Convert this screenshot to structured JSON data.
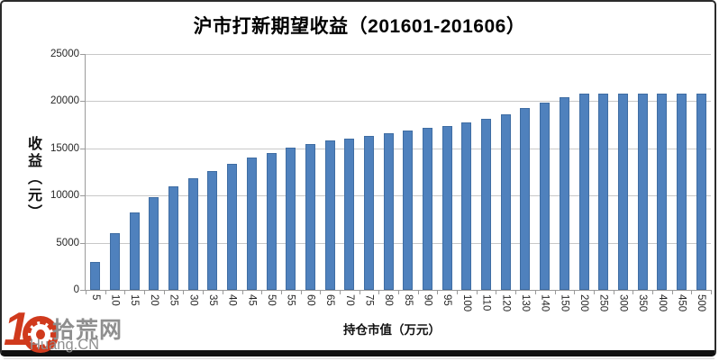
{
  "title": "沪市打新期望收益（201601-201606）",
  "y_axis": {
    "title": "收益（元）",
    "ticks": [
      "25000",
      "20000",
      "15000",
      "10000",
      "5000",
      "0"
    ]
  },
  "x_axis": {
    "title": "持仓市值（万元）"
  },
  "chart_data": {
    "type": "bar",
    "title": "沪市打新期望收益（201601-201606）",
    "xlabel": "持仓市值（万元）",
    "ylabel": "收益（元）",
    "ylim": [
      0,
      25000
    ],
    "grid": true,
    "legend": "none",
    "categories": [
      "5",
      "10",
      "15",
      "20",
      "25",
      "30",
      "35",
      "40",
      "45",
      "50",
      "55",
      "60",
      "65",
      "70",
      "75",
      "80",
      "85",
      "90",
      "95",
      "100",
      "110",
      "120",
      "130",
      "140",
      "150",
      "200",
      "250",
      "300",
      "350",
      "400",
      "450",
      "500"
    ],
    "values": [
      3000,
      6050,
      8200,
      9800,
      10950,
      11800,
      12600,
      13350,
      14000,
      14550,
      15100,
      15500,
      15800,
      16050,
      16350,
      16600,
      16900,
      17150,
      17400,
      17750,
      18100,
      18650,
      19300,
      19850,
      20450,
      20800,
      20800,
      20800,
      20800,
      20800,
      20800,
      20800
    ]
  },
  "colors": {
    "bar": "#4f81bd",
    "bar_border": "#3f6da3",
    "gridline": "#c8c8c8",
    "axis": "#9a9a9a",
    "watermark_red": "#d03a1d",
    "watermark_gray": "#8f8f8f"
  },
  "watermark": {
    "number": "1",
    "site": "拾荒网",
    "domain": "Huang.CN"
  }
}
